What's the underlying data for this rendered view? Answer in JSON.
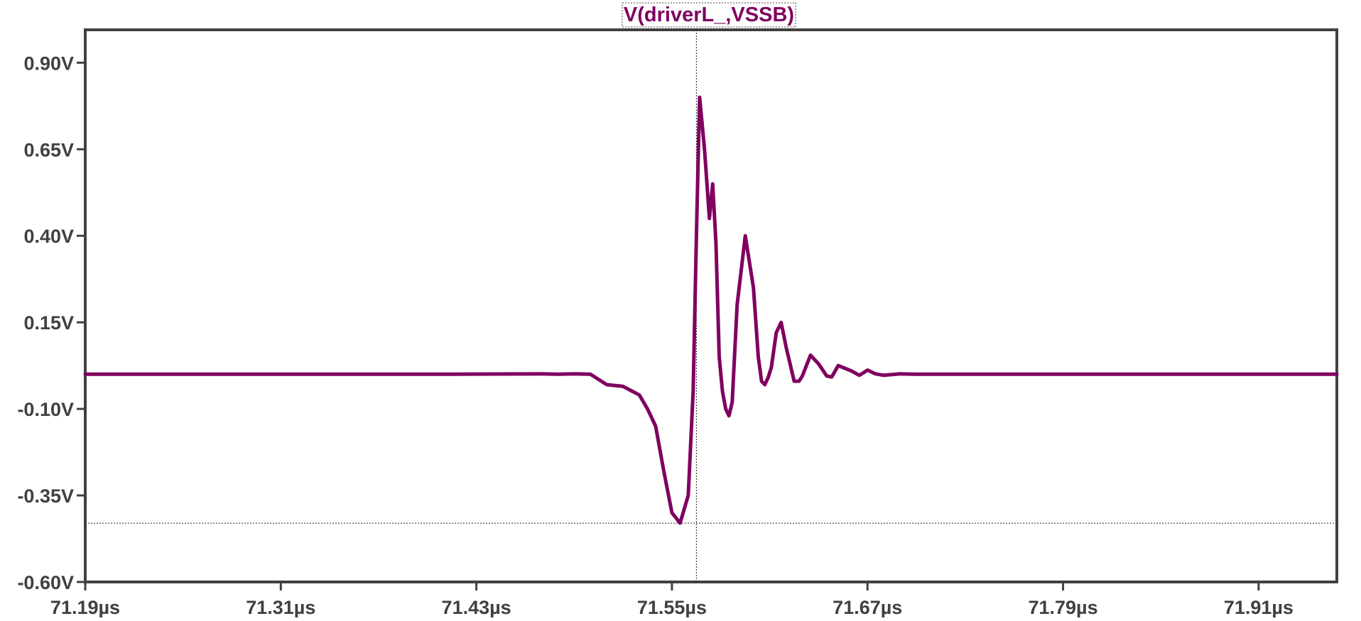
{
  "chart_data": {
    "type": "line",
    "title": "V(driverL_,VSSB)",
    "x_unit": "µs",
    "y_unit": "V",
    "xlim": [
      71.19,
      71.958
    ],
    "ylim": [
      -0.6,
      0.995
    ],
    "x_ticks": [
      71.19,
      71.31,
      71.43,
      71.55,
      71.67,
      71.79,
      71.91
    ],
    "x_tick_labels": [
      "71.19µs",
      "71.31µs",
      "71.43µs",
      "71.55µs",
      "71.67µs",
      "71.79µs",
      "71.91µs"
    ],
    "y_ticks": [
      0.9,
      0.65,
      0.4,
      0.15,
      -0.1,
      -0.35,
      -0.6
    ],
    "y_tick_labels": [
      "0.90V",
      "0.65V",
      "0.40V",
      "0.15V",
      "-0.10V",
      "-0.35V",
      "-0.60V"
    ],
    "grid": false,
    "cursor": {
      "x": 71.565,
      "y": -0.43
    },
    "colors": {
      "trace": "#800060",
      "frame": "#404040",
      "tick_text": "#404040"
    },
    "series": [
      {
        "name": "V(driverL_,VSSB)",
        "x": [
          71.19,
          71.3,
          71.4,
          71.47,
          71.48,
          71.49,
          71.5,
          71.51,
          71.52,
          71.53,
          71.535,
          71.54,
          71.545,
          71.55,
          71.555,
          71.56,
          71.563,
          71.565,
          71.567,
          71.57,
          71.573,
          71.575,
          71.577,
          71.579,
          71.581,
          71.583,
          71.585,
          71.587,
          71.59,
          71.595,
          71.6,
          71.603,
          71.605,
          71.607,
          71.609,
          71.611,
          71.614,
          71.617,
          71.62,
          71.625,
          71.628,
          71.63,
          71.635,
          71.64,
          71.645,
          71.648,
          71.652,
          71.66,
          71.665,
          71.67,
          71.675,
          71.68,
          71.69,
          71.7,
          71.75,
          71.8,
          71.9,
          71.958
        ],
        "y": [
          0.0,
          0.0,
          0.0,
          0.001,
          0.0,
          0.001,
          0.0,
          -0.03,
          -0.035,
          -0.06,
          -0.1,
          -0.15,
          -0.28,
          -0.4,
          -0.43,
          -0.35,
          -0.05,
          0.4,
          0.8,
          0.65,
          0.45,
          0.55,
          0.38,
          0.05,
          -0.05,
          -0.1,
          -0.12,
          -0.08,
          0.2,
          0.4,
          0.25,
          0.05,
          -0.02,
          -0.03,
          -0.01,
          0.02,
          0.12,
          0.15,
          0.08,
          -0.02,
          -0.02,
          -0.005,
          0.055,
          0.03,
          -0.005,
          -0.008,
          0.025,
          0.01,
          -0.003,
          0.012,
          0.001,
          -0.003,
          0.001,
          0.0,
          0.0,
          0.0,
          0.0,
          0.0
        ]
      }
    ]
  }
}
